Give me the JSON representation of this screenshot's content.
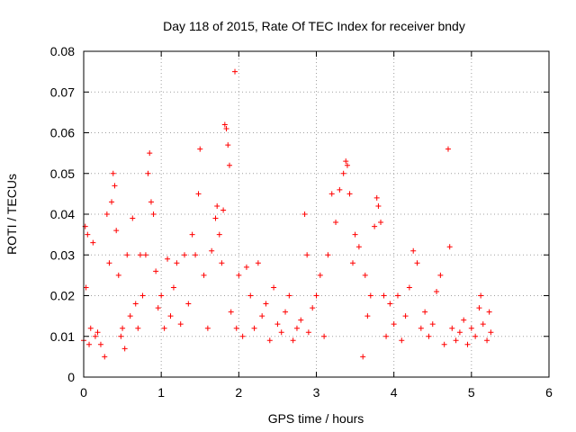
{
  "chart_data": {
    "type": "scatter",
    "title": "Day 118 of 2015, Rate Of TEC Index for receiver bndy",
    "xlabel": "GPS time / hours",
    "ylabel": "ROTI / TECUs",
    "xlim": [
      0,
      6
    ],
    "ylim": [
      0,
      0.08
    ],
    "xticks": [
      "0",
      "1",
      "2",
      "3",
      "4",
      "5",
      "6"
    ],
    "yticks": [
      "0",
      "0.01",
      "0.02",
      "0.03",
      "0.04",
      "0.05",
      "0.06",
      "0.07",
      "0.08"
    ],
    "grid": true,
    "marker": "+",
    "color": "#ff0000",
    "series": [
      {
        "name": "ROTI",
        "points": [
          [
            0.0,
            0.009
          ],
          [
            0.02,
            0.037
          ],
          [
            0.03,
            0.022
          ],
          [
            0.05,
            0.035
          ],
          [
            0.07,
            0.008
          ],
          [
            0.09,
            0.012
          ],
          [
            0.12,
            0.033
          ],
          [
            0.15,
            0.01
          ],
          [
            0.18,
            0.011
          ],
          [
            0.22,
            0.008
          ],
          [
            0.27,
            0.005
          ],
          [
            0.3,
            0.04
          ],
          [
            0.33,
            0.028
          ],
          [
            0.36,
            0.043
          ],
          [
            0.38,
            0.05
          ],
          [
            0.4,
            0.047
          ],
          [
            0.42,
            0.036
          ],
          [
            0.45,
            0.025
          ],
          [
            0.48,
            0.01
          ],
          [
            0.5,
            0.012
          ],
          [
            0.53,
            0.007
          ],
          [
            0.56,
            0.03
          ],
          [
            0.6,
            0.015
          ],
          [
            0.63,
            0.039
          ],
          [
            0.67,
            0.018
          ],
          [
            0.7,
            0.012
          ],
          [
            0.73,
            0.03
          ],
          [
            0.76,
            0.02
          ],
          [
            0.8,
            0.03
          ],
          [
            0.83,
            0.05
          ],
          [
            0.85,
            0.055
          ],
          [
            0.87,
            0.043
          ],
          [
            0.9,
            0.04
          ],
          [
            0.93,
            0.026
          ],
          [
            0.96,
            0.017
          ],
          [
            1.0,
            0.02
          ],
          [
            1.04,
            0.012
          ],
          [
            1.08,
            0.029
          ],
          [
            1.12,
            0.015
          ],
          [
            1.16,
            0.022
          ],
          [
            1.2,
            0.028
          ],
          [
            1.25,
            0.013
          ],
          [
            1.3,
            0.03
          ],
          [
            1.35,
            0.018
          ],
          [
            1.4,
            0.035
          ],
          [
            1.44,
            0.03
          ],
          [
            1.48,
            0.045
          ],
          [
            1.5,
            0.056
          ],
          [
            1.55,
            0.025
          ],
          [
            1.6,
            0.012
          ],
          [
            1.65,
            0.031
          ],
          [
            1.7,
            0.039
          ],
          [
            1.72,
            0.042
          ],
          [
            1.75,
            0.035
          ],
          [
            1.78,
            0.028
          ],
          [
            1.8,
            0.041
          ],
          [
            1.82,
            0.062
          ],
          [
            1.84,
            0.061
          ],
          [
            1.86,
            0.057
          ],
          [
            1.88,
            0.052
          ],
          [
            1.9,
            0.016
          ],
          [
            1.95,
            0.075
          ],
          [
            1.97,
            0.012
          ],
          [
            2.0,
            0.025
          ],
          [
            2.05,
            0.01
          ],
          [
            2.1,
            0.027
          ],
          [
            2.15,
            0.02
          ],
          [
            2.2,
            0.012
          ],
          [
            2.25,
            0.028
          ],
          [
            2.3,
            0.015
          ],
          [
            2.35,
            0.018
          ],
          [
            2.4,
            0.009
          ],
          [
            2.45,
            0.022
          ],
          [
            2.5,
            0.013
          ],
          [
            2.55,
            0.011
          ],
          [
            2.6,
            0.016
          ],
          [
            2.65,
            0.02
          ],
          [
            2.7,
            0.009
          ],
          [
            2.75,
            0.012
          ],
          [
            2.8,
            0.014
          ],
          [
            2.85,
            0.04
          ],
          [
            2.88,
            0.03
          ],
          [
            2.9,
            0.011
          ],
          [
            2.95,
            0.017
          ],
          [
            3.0,
            0.02
          ],
          [
            3.05,
            0.025
          ],
          [
            3.1,
            0.01
          ],
          [
            3.15,
            0.03
          ],
          [
            3.2,
            0.045
          ],
          [
            3.25,
            0.038
          ],
          [
            3.3,
            0.046
          ],
          [
            3.35,
            0.05
          ],
          [
            3.38,
            0.053
          ],
          [
            3.4,
            0.052
          ],
          [
            3.43,
            0.045
          ],
          [
            3.47,
            0.028
          ],
          [
            3.5,
            0.035
          ],
          [
            3.55,
            0.032
          ],
          [
            3.6,
            0.005
          ],
          [
            3.63,
            0.025
          ],
          [
            3.66,
            0.015
          ],
          [
            3.7,
            0.02
          ],
          [
            3.75,
            0.037
          ],
          [
            3.78,
            0.044
          ],
          [
            3.8,
            0.042
          ],
          [
            3.83,
            0.038
          ],
          [
            3.87,
            0.02
          ],
          [
            3.9,
            0.01
          ],
          [
            3.95,
            0.018
          ],
          [
            4.0,
            0.013
          ],
          [
            4.05,
            0.02
          ],
          [
            4.1,
            0.009
          ],
          [
            4.15,
            0.015
          ],
          [
            4.2,
            0.022
          ],
          [
            4.25,
            0.031
          ],
          [
            4.3,
            0.028
          ],
          [
            4.35,
            0.012
          ],
          [
            4.4,
            0.016
          ],
          [
            4.45,
            0.01
          ],
          [
            4.5,
            0.013
          ],
          [
            4.55,
            0.021
          ],
          [
            4.6,
            0.025
          ],
          [
            4.65,
            0.008
          ],
          [
            4.7,
            0.056
          ],
          [
            4.72,
            0.032
          ],
          [
            4.75,
            0.012
          ],
          [
            4.8,
            0.009
          ],
          [
            4.85,
            0.011
          ],
          [
            4.9,
            0.014
          ],
          [
            4.95,
            0.008
          ],
          [
            5.0,
            0.012
          ],
          [
            5.05,
            0.01
          ],
          [
            5.1,
            0.017
          ],
          [
            5.12,
            0.02
          ],
          [
            5.15,
            0.013
          ],
          [
            5.2,
            0.009
          ],
          [
            5.23,
            0.016
          ],
          [
            5.25,
            0.011
          ]
        ]
      }
    ]
  }
}
